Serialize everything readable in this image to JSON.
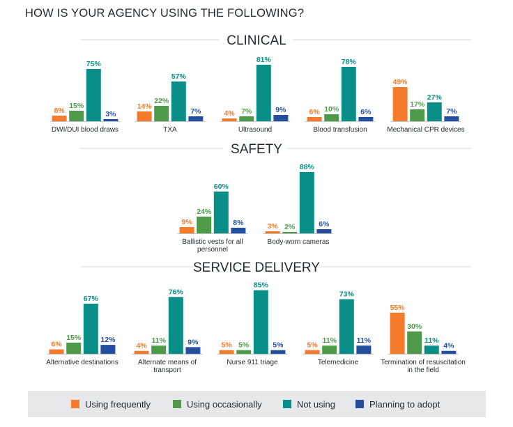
{
  "title": "HOW IS YOUR AGENCY USING THE FOLLOWING?",
  "series": [
    {
      "name": "Using frequently",
      "color": "#f47a2c"
    },
    {
      "name": "Using occasionally",
      "color": "#4f9a4a"
    },
    {
      "name": "Not using",
      "color": "#0a8f88"
    },
    {
      "name": "Planning to adopt",
      "color": "#244f9e"
    }
  ],
  "chart_data": {
    "type": "bar",
    "title": "HOW IS YOUR AGENCY USING THE FOLLOWING?",
    "unit": "%",
    "ylim": [
      0,
      100
    ],
    "legend": "bottom",
    "sections": [
      {
        "name": "CLINICAL",
        "groups": [
          {
            "label": [
              "DWI/DUI blood draws"
            ],
            "values": [
              8,
              15,
              75,
              3
            ]
          },
          {
            "label": [
              "TXA"
            ],
            "values": [
              14,
              22,
              57,
              7
            ]
          },
          {
            "label": [
              "Ultrasound"
            ],
            "values": [
              4,
              7,
              81,
              9
            ]
          },
          {
            "label": [
              "Blood transfusion"
            ],
            "values": [
              6,
              10,
              78,
              6
            ]
          },
          {
            "label": [
              "Mechanical CPR devices"
            ],
            "values": [
              49,
              17,
              27,
              7
            ]
          }
        ]
      },
      {
        "name": "SAFETY",
        "groups": [
          {
            "label": [
              "Ballistic vests for all",
              "personnel"
            ],
            "values": [
              9,
              24,
              60,
              8
            ]
          },
          {
            "label": [
              "Body-worn cameras"
            ],
            "values": [
              3,
              2,
              88,
              6
            ]
          }
        ]
      },
      {
        "name": "SERVICE DELIVERY",
        "groups": [
          {
            "label": [
              "Alternative destinations"
            ],
            "values": [
              6,
              15,
              67,
              12
            ]
          },
          {
            "label": [
              "Alternate means of",
              "transport"
            ],
            "values": [
              4,
              11,
              76,
              9
            ]
          },
          {
            "label": [
              "Nurse 911 triage"
            ],
            "values": [
              5,
              5,
              85,
              5
            ]
          },
          {
            "label": [
              "Telemedicine"
            ],
            "values": [
              5,
              11,
              73,
              11
            ]
          },
          {
            "label": [
              "Termination of resuscitation",
              "in the field"
            ],
            "values": [
              55,
              30,
              11,
              4
            ]
          }
        ]
      }
    ]
  }
}
